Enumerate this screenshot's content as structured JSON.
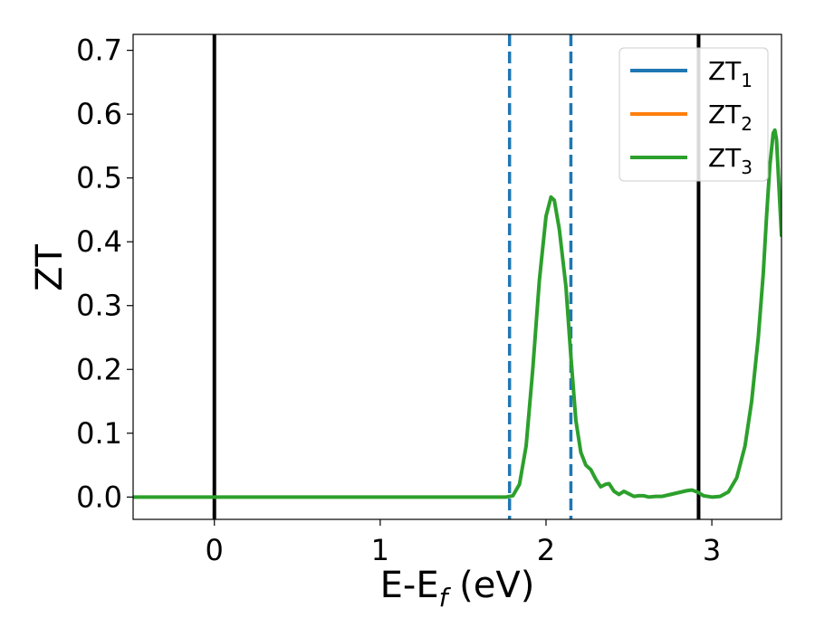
{
  "chart_data": {
    "type": "line",
    "xlabel": "E-E",
    "xlabel_sub": "f",
    "xlabel_unit": " (eV)",
    "ylabel": "ZT",
    "xlim": [
      -0.49,
      3.42
    ],
    "ylim": [
      -0.035,
      0.725
    ],
    "xticks": [
      0,
      1,
      2,
      3
    ],
    "xtick_labels": [
      "0",
      "1",
      "2",
      "3"
    ],
    "yticks": [
      0.0,
      0.1,
      0.2,
      0.3,
      0.4,
      0.5,
      0.6,
      0.7
    ],
    "ytick_labels": [
      "0.0",
      "0.1",
      "0.2",
      "0.3",
      "0.4",
      "0.5",
      "0.6",
      "0.7"
    ],
    "grid": false,
    "legend_position": "top-right",
    "vlines": [
      {
        "x": 0.0,
        "style": "solid",
        "color": "#000000"
      },
      {
        "x": 2.92,
        "style": "solid",
        "color": "#000000"
      },
      {
        "x": 1.78,
        "style": "dashed",
        "color": "#1f77b4"
      },
      {
        "x": 2.15,
        "style": "dashed",
        "color": "#1f77b4"
      }
    ],
    "series": [
      {
        "name": "ZT",
        "sub": "1",
        "color": "#1f77b4",
        "x": [],
        "y": []
      },
      {
        "name": "ZT",
        "sub": "2",
        "color": "#ff7f0e",
        "x": [],
        "y": []
      },
      {
        "name": "ZT",
        "sub": "3",
        "color": "#2ca02c",
        "x": [
          -0.49,
          0.0,
          0.5,
          1.0,
          1.5,
          1.7,
          1.76,
          1.8,
          1.84,
          1.88,
          1.92,
          1.96,
          2.0,
          2.03,
          2.05,
          2.08,
          2.12,
          2.15,
          2.18,
          2.21,
          2.24,
          2.27,
          2.3,
          2.33,
          2.36,
          2.38,
          2.41,
          2.44,
          2.47,
          2.5,
          2.53,
          2.56,
          2.59,
          2.62,
          2.66,
          2.7,
          2.75,
          2.8,
          2.85,
          2.88,
          2.92,
          2.95,
          3.0,
          3.05,
          3.1,
          3.15,
          3.2,
          3.24,
          3.28,
          3.31,
          3.33,
          3.35,
          3.37,
          3.38,
          3.39,
          3.4,
          3.42
        ],
        "y": [
          0.0,
          0.0,
          0.0,
          0.0,
          0.0,
          0.0,
          0.0,
          0.002,
          0.02,
          0.08,
          0.2,
          0.34,
          0.44,
          0.47,
          0.465,
          0.42,
          0.33,
          0.22,
          0.12,
          0.07,
          0.05,
          0.043,
          0.028,
          0.016,
          0.02,
          0.021,
          0.009,
          0.004,
          0.009,
          0.005,
          0.001,
          0.002,
          0.002,
          0.0,
          0.001,
          0.001,
          0.004,
          0.007,
          0.01,
          0.011,
          0.007,
          0.002,
          0.0,
          0.001,
          0.008,
          0.03,
          0.08,
          0.15,
          0.25,
          0.35,
          0.44,
          0.52,
          0.57,
          0.575,
          0.56,
          0.51,
          0.41
        ]
      }
    ]
  }
}
